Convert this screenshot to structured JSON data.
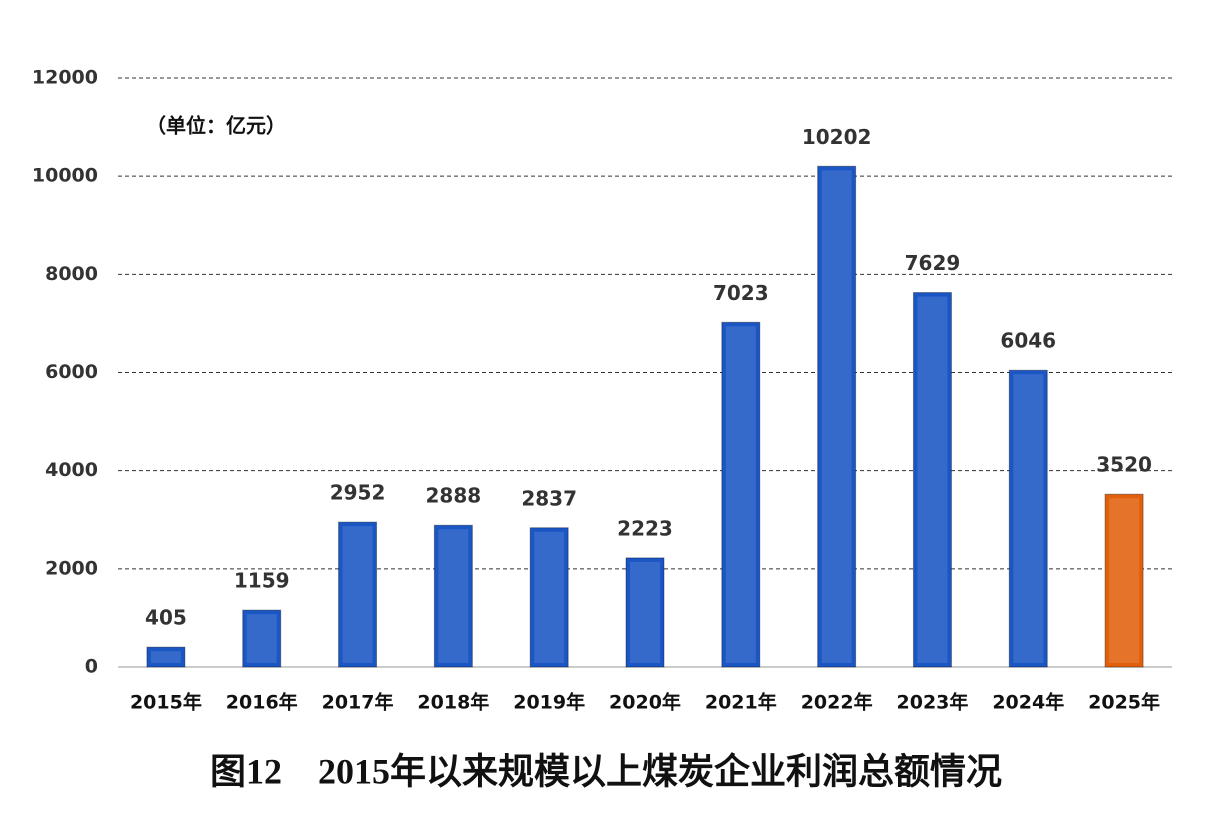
{
  "chart_data": {
    "type": "bar",
    "title": "图12　2015年以来规模以上煤炭企业利润总额情况",
    "annotation": "（单位：亿元）",
    "categories": [
      "2015年",
      "2016年",
      "2017年",
      "2018年",
      "2019年",
      "2020年",
      "2021年",
      "2022年",
      "2023年",
      "2024年",
      "2025年"
    ],
    "values": [
      405,
      1159,
      2952,
      2888,
      2837,
      2223,
      7023,
      10202,
      7629,
      6046,
      3520
    ],
    "colors": [
      "#1a56c4",
      "#1a56c4",
      "#1a56c4",
      "#1a56c4",
      "#1a56c4",
      "#1a56c4",
      "#1a56c4",
      "#1a56c4",
      "#1a56c4",
      "#1a56c4",
      "#e2600c"
    ],
    "ylim": [
      0,
      12000
    ],
    "yticks": [
      0,
      2000,
      4000,
      6000,
      8000,
      10000,
      12000
    ],
    "grid": true
  }
}
